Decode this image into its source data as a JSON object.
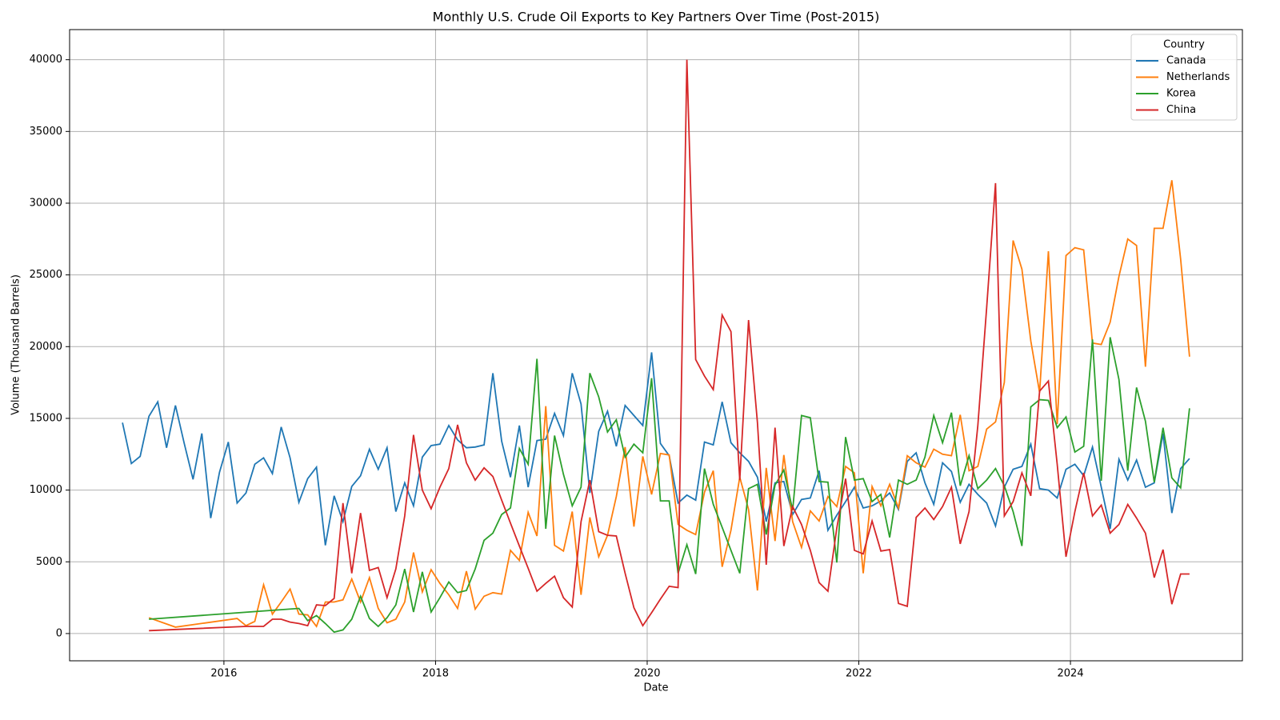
{
  "chart_data": {
    "type": "line",
    "title": "Monthly U.S. Crude Oil Exports to Key Partners Over Time (Post-2015)",
    "x_label": "Date",
    "y_label": "Volume (Thousand Barrels)",
    "legend_title": "Country",
    "legend_position": "upper right",
    "grid": true,
    "xlim": [
      "2014-07",
      "2025-08"
    ],
    "xticks": [
      "2016",
      "2018",
      "2020",
      "2022",
      "2024"
    ],
    "ylim": [
      -1900,
      42100
    ],
    "yticks": [
      0,
      5000,
      10000,
      15000,
      20000,
      25000,
      30000,
      35000,
      40000
    ],
    "series": [
      {
        "name": "Canada",
        "color": "#1f77b4",
        "x": [
          "2015-01",
          "2015-02",
          "2015-03",
          "2015-04",
          "2015-05",
          "2015-06",
          "2015-07",
          "2015-08",
          "2015-09",
          "2015-10",
          "2015-11",
          "2015-12",
          "2016-01",
          "2016-02",
          "2016-03",
          "2016-04",
          "2016-05",
          "2016-06",
          "2016-07",
          "2016-08",
          "2016-09",
          "2016-10",
          "2016-11",
          "2016-12",
          "2017-01",
          "2017-02",
          "2017-03",
          "2017-04",
          "2017-05",
          "2017-06",
          "2017-07",
          "2017-08",
          "2017-09",
          "2017-10",
          "2017-11",
          "2017-12",
          "2018-01",
          "2018-02",
          "2018-03",
          "2018-04",
          "2018-05",
          "2018-06",
          "2018-07",
          "2018-08",
          "2018-09",
          "2018-10",
          "2018-11",
          "2018-12",
          "2019-01",
          "2019-02",
          "2019-03",
          "2019-04",
          "2019-05",
          "2019-06",
          "2019-07",
          "2019-08",
          "2019-09",
          "2019-10",
          "2019-11",
          "2019-12",
          "2020-01",
          "2020-02",
          "2020-03",
          "2020-04",
          "2020-05",
          "2020-06",
          "2020-07",
          "2020-08",
          "2020-09",
          "2020-10",
          "2020-11",
          "2020-12",
          "2021-01",
          "2021-02",
          "2021-03",
          "2021-04",
          "2021-05",
          "2021-06",
          "2021-07",
          "2021-08",
          "2021-09",
          "2021-10",
          "2021-11",
          "2021-12",
          "2022-01",
          "2022-02",
          "2022-03",
          "2022-04",
          "2022-05",
          "2022-06",
          "2022-07",
          "2022-08",
          "2022-09",
          "2022-10",
          "2022-11",
          "2022-12",
          "2023-01",
          "2023-02",
          "2023-03",
          "2023-04",
          "2023-05",
          "2023-06",
          "2023-07",
          "2023-08",
          "2023-09",
          "2023-10",
          "2023-11",
          "2023-12",
          "2024-01",
          "2024-02",
          "2024-03",
          "2024-04",
          "2024-05",
          "2024-06",
          "2024-07",
          "2024-08",
          "2024-09",
          "2024-10",
          "2024-11",
          "2024-12",
          "2025-01",
          "2025-02"
        ],
        "values": [
          14700,
          11850,
          12350,
          15150,
          16150,
          12950,
          15900,
          13250,
          10750,
          13950,
          8050,
          11250,
          13350,
          9100,
          9800,
          11800,
          12250,
          11150,
          14400,
          12250,
          9150,
          10800,
          11600,
          6150,
          9600,
          7800,
          10250,
          11000,
          12850,
          11450,
          12950,
          8500,
          10500,
          8900,
          12300,
          13100,
          13200,
          14500,
          13500,
          12950,
          13000,
          13150,
          18150,
          13400,
          10900,
          14500,
          10200,
          13450,
          13550,
          15350,
          13800,
          18150,
          16000,
          9800,
          14100,
          15500,
          13050,
          15900,
          15200,
          14500,
          19600,
          13250,
          12400,
          9100,
          9650,
          9300,
          13350,
          13150,
          16150,
          13300,
          12600,
          12000,
          10900,
          7800,
          10500,
          10600,
          8300,
          9350,
          9450,
          11350,
          7200,
          8250,
          9200,
          10200,
          8750,
          8900,
          9250,
          9800,
          8650,
          12000,
          12600,
          10500,
          9000,
          11900,
          11300,
          9150,
          10400,
          9700,
          9100,
          7500,
          10200,
          11450,
          11650,
          13200,
          10100,
          10000,
          9450,
          11450,
          11800,
          11000,
          13000,
          10200,
          7300,
          12150,
          10700,
          12100,
          10200,
          10500,
          13950,
          8400,
          11500,
          12200
        ]
      },
      {
        "name": "Netherlands",
        "color": "#ff7f0e",
        "x": [
          "2015-04",
          "2015-07",
          "2016-02",
          "2016-03",
          "2016-04",
          "2016-05",
          "2016-06",
          "2016-07",
          "2016-08",
          "2016-09",
          "2016-10",
          "2016-11",
          "2016-12",
          "2017-01",
          "2017-02",
          "2017-03",
          "2017-04",
          "2017-05",
          "2017-06",
          "2017-07",
          "2017-08",
          "2017-09",
          "2017-10",
          "2017-11",
          "2017-12",
          "2018-01",
          "2018-02",
          "2018-03",
          "2018-04",
          "2018-05",
          "2018-06",
          "2018-07",
          "2018-08",
          "2018-09",
          "2018-10",
          "2018-11",
          "2018-12",
          "2019-01",
          "2019-02",
          "2019-03",
          "2019-04",
          "2019-05",
          "2019-06",
          "2019-07",
          "2019-08",
          "2019-09",
          "2019-10",
          "2019-11",
          "2019-12",
          "2020-01",
          "2020-02",
          "2020-03",
          "2020-04",
          "2020-05",
          "2020-06",
          "2020-07",
          "2020-08",
          "2020-09",
          "2020-10",
          "2020-11",
          "2020-12",
          "2021-01",
          "2021-02",
          "2021-03",
          "2021-04",
          "2021-05",
          "2021-06",
          "2021-07",
          "2021-08",
          "2021-09",
          "2021-10",
          "2021-11",
          "2021-12",
          "2022-01",
          "2022-02",
          "2022-03",
          "2022-04",
          "2022-05",
          "2022-06",
          "2022-07",
          "2022-08",
          "2022-09",
          "2022-10",
          "2022-11",
          "2022-12",
          "2023-01",
          "2023-02",
          "2023-03",
          "2023-04",
          "2023-05",
          "2023-06",
          "2023-07",
          "2023-08",
          "2023-09",
          "2023-10",
          "2023-11",
          "2023-12",
          "2024-01",
          "2024-02",
          "2024-03",
          "2024-04",
          "2024-05",
          "2024-06",
          "2024-07",
          "2024-08",
          "2024-09",
          "2024-10",
          "2024-11",
          "2024-12",
          "2025-01",
          "2025-02"
        ],
        "values": [
          1100,
          450,
          1050,
          550,
          850,
          3400,
          1350,
          2200,
          3100,
          1350,
          1300,
          500,
          2200,
          2200,
          2350,
          3800,
          2200,
          3900,
          1750,
          750,
          1000,
          2200,
          5650,
          2900,
          4450,
          3500,
          2700,
          1750,
          4350,
          1700,
          2600,
          2850,
          2750,
          5800,
          5100,
          8450,
          6800,
          15850,
          6150,
          5750,
          8500,
          2700,
          8100,
          5350,
          6850,
          9550,
          13000,
          7450,
          12350,
          9700,
          12550,
          12450,
          7600,
          7200,
          6900,
          9850,
          11350,
          4650,
          7200,
          10900,
          8650,
          3000,
          11550,
          6450,
          12450,
          7800,
          6000,
          8550,
          7850,
          9550,
          8850,
          11650,
          11200,
          4200,
          10250,
          8900,
          10400,
          8750,
          12400,
          11900,
          11600,
          12850,
          12500,
          12400,
          15250,
          11350,
          11650,
          14250,
          14750,
          17500,
          27400,
          25400,
          20400,
          16800,
          26650,
          14600,
          26350,
          26900,
          26750,
          20250,
          20150,
          21700,
          24900,
          27500,
          27050,
          18600,
          28250,
          28250,
          31600,
          26100,
          19300
        ]
      },
      {
        "name": "Korea",
        "color": "#2ca02c",
        "x": [
          "2015-04",
          "2016-09",
          "2016-10",
          "2016-11",
          "2016-12",
          "2017-01",
          "2017-02",
          "2017-03",
          "2017-04",
          "2017-05",
          "2017-06",
          "2017-07",
          "2017-08",
          "2017-09",
          "2017-10",
          "2017-11",
          "2017-12",
          "2018-01",
          "2018-02",
          "2018-03",
          "2018-04",
          "2018-05",
          "2018-06",
          "2018-07",
          "2018-08",
          "2018-09",
          "2018-10",
          "2018-11",
          "2018-12",
          "2019-01",
          "2019-02",
          "2019-03",
          "2019-04",
          "2019-05",
          "2019-06",
          "2019-07",
          "2019-08",
          "2019-09",
          "2019-10",
          "2019-11",
          "2019-12",
          "2020-01",
          "2020-02",
          "2020-03",
          "2020-04",
          "2020-05",
          "2020-06",
          "2020-07",
          "2020-08",
          "2020-09",
          "2020-10",
          "2020-11",
          "2020-12",
          "2021-01",
          "2021-02",
          "2021-03",
          "2021-04",
          "2021-05",
          "2021-06",
          "2021-07",
          "2021-08",
          "2021-09",
          "2021-10",
          "2021-11",
          "2021-12",
          "2022-01",
          "2022-02",
          "2022-03",
          "2022-04",
          "2022-05",
          "2022-06",
          "2022-07",
          "2022-08",
          "2022-09",
          "2022-10",
          "2022-11",
          "2022-12",
          "2023-01",
          "2023-02",
          "2023-03",
          "2023-04",
          "2023-05",
          "2023-06",
          "2023-07",
          "2023-08",
          "2023-09",
          "2023-10",
          "2023-11",
          "2023-12",
          "2024-01",
          "2024-02",
          "2024-03",
          "2024-04",
          "2024-05",
          "2024-06",
          "2024-07",
          "2024-08",
          "2024-09",
          "2024-10",
          "2024-11",
          "2024-12",
          "2025-01",
          "2025-02"
        ],
        "values": [
          1000,
          1750,
          900,
          1250,
          700,
          100,
          250,
          1000,
          2600,
          1050,
          500,
          1100,
          2000,
          4500,
          1500,
          4300,
          1500,
          2500,
          3600,
          2850,
          3000,
          4500,
          6500,
          7000,
          8300,
          8750,
          12900,
          11800,
          19150,
          7300,
          13800,
          11100,
          8900,
          10200,
          18150,
          16500,
          14050,
          14900,
          12300,
          13200,
          12600,
          17800,
          9250,
          9250,
          4200,
          6200,
          4150,
          11500,
          9000,
          7400,
          5800,
          4200,
          10100,
          10400,
          6900,
          10350,
          11400,
          8600,
          15200,
          15050,
          10600,
          10550,
          4950,
          13700,
          10700,
          10800,
          9200,
          9700,
          6700,
          10700,
          10400,
          10700,
          12300,
          15200,
          13300,
          15400,
          10300,
          12400,
          10100,
          10700,
          11500,
          10300,
          8500,
          6100,
          15800,
          16300,
          16250,
          14350,
          15100,
          12650,
          13050,
          20500,
          10650,
          20650,
          17700,
          11350,
          17150,
          14800,
          10550,
          14350,
          10850,
          10150,
          15700
        ]
      },
      {
        "name": "China",
        "color": "#d62728",
        "x": [
          "2015-04",
          "2016-03",
          "2016-04",
          "2016-05",
          "2016-06",
          "2016-07",
          "2016-08",
          "2016-09",
          "2016-10",
          "2016-11",
          "2016-12",
          "2017-01",
          "2017-02",
          "2017-03",
          "2017-04",
          "2017-05",
          "2017-06",
          "2017-07",
          "2017-08",
          "2017-09",
          "2017-10",
          "2017-11",
          "2017-12",
          "2018-01",
          "2018-02",
          "2018-03",
          "2018-04",
          "2018-05",
          "2018-06",
          "2018-07",
          "2018-08",
          "2018-09",
          "2018-10",
          "2018-11",
          "2018-12",
          "2019-01",
          "2019-02",
          "2019-03",
          "2019-04",
          "2019-05",
          "2019-06",
          "2019-07",
          "2019-08",
          "2019-09",
          "2019-10",
          "2019-11",
          "2019-12",
          "2020-01",
          "2020-02",
          "2020-03",
          "2020-04",
          "2020-05",
          "2020-06",
          "2020-07",
          "2020-08",
          "2020-09",
          "2020-10",
          "2020-11",
          "2020-12",
          "2021-01",
          "2021-02",
          "2021-03",
          "2021-04",
          "2021-05",
          "2021-06",
          "2021-07",
          "2021-08",
          "2021-09",
          "2021-10",
          "2021-11",
          "2021-12",
          "2022-01",
          "2022-02",
          "2022-03",
          "2022-04",
          "2022-05",
          "2022-06",
          "2022-07",
          "2022-08",
          "2022-09",
          "2022-10",
          "2022-11",
          "2022-12",
          "2023-01",
          "2023-02",
          "2023-03",
          "2023-04",
          "2023-05",
          "2023-06",
          "2023-07",
          "2023-08",
          "2023-09",
          "2023-10",
          "2023-11",
          "2023-12",
          "2024-01",
          "2024-02",
          "2024-03",
          "2024-04",
          "2024-05",
          "2024-06",
          "2024-07",
          "2024-08",
          "2024-09",
          "2024-10",
          "2024-11",
          "2024-12",
          "2025-01",
          "2025-02"
        ],
        "values": [
          200,
          500,
          500,
          500,
          1000,
          1000,
          800,
          700,
          550,
          2000,
          1950,
          2450,
          9100,
          4200,
          8400,
          4400,
          4600,
          2500,
          4500,
          8200,
          13850,
          10000,
          8700,
          10200,
          11500,
          14550,
          11900,
          10700,
          11550,
          10950,
          9300,
          7700,
          6100,
          4550,
          2950,
          3500,
          4000,
          2500,
          1850,
          7800,
          10700,
          7100,
          6850,
          6800,
          4200,
          1800,
          550,
          1450,
          2400,
          3300,
          3200,
          40000,
          19100,
          17950,
          17000,
          22200,
          21050,
          10700,
          21850,
          14700,
          4800,
          14350,
          6100,
          8850,
          7600,
          5800,
          3550,
          2950,
          7350,
          10800,
          5800,
          5550,
          7850,
          5750,
          5850,
          2100,
          1900,
          8100,
          8750,
          7950,
          8850,
          10200,
          6250,
          8500,
          14500,
          22700,
          31400,
          8200,
          9200,
          11200,
          9600,
          16900,
          17600,
          11800,
          5350,
          8500,
          11200,
          8200,
          8950,
          7000,
          7600,
          9000,
          8050,
          7000,
          3900,
          5850,
          2050,
          4150,
          4150
        ]
      }
    ]
  }
}
